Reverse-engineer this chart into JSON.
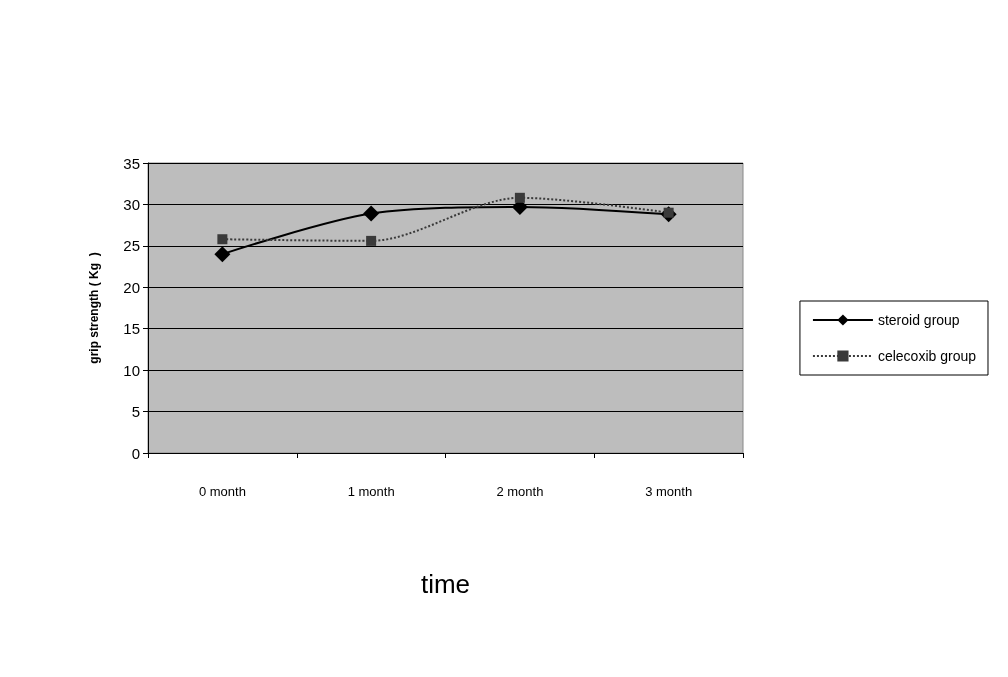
{
  "chart_data": {
    "type": "line",
    "xlabel": "time",
    "ylabel": "grip strength ( Kg  )",
    "categories": [
      "0 month",
      "1 month",
      "2 month",
      "3 month"
    ],
    "series": [
      {
        "name": "steroid group",
        "color": "#000000",
        "values": [
          24,
          28.9,
          29.7,
          28.8
        ],
        "marker": "diamond",
        "line_style": "solid"
      },
      {
        "name": "celecoxib group",
        "color": "#3a3a3a",
        "values": [
          25.8,
          25.6,
          30.8,
          29.0
        ],
        "marker": "square",
        "line_style": "dotted"
      }
    ],
    "ylim": [
      0,
      35
    ],
    "yticks": [
      0,
      5,
      10,
      15,
      20,
      25,
      30,
      35
    ],
    "grid": "y",
    "legend": "right"
  }
}
